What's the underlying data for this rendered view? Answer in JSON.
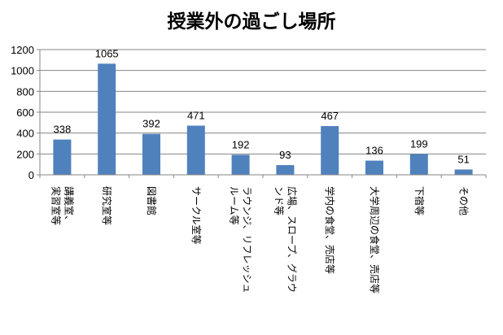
{
  "chart_data": {
    "type": "bar",
    "title": "授業外の過ごし場所",
    "xlabel": "",
    "ylabel": "",
    "ylim": [
      0,
      1200
    ],
    "yticks": [
      0,
      200,
      400,
      600,
      800,
      1000,
      1200
    ],
    "grid": true,
    "legend": "none",
    "bar_color": "#4F81BD",
    "categories": [
      [
        "講義室、",
        "実習室等"
      ],
      [
        "研究室等"
      ],
      [
        "図書館"
      ],
      [
        "サークル室等"
      ],
      [
        "ラウンジ、リフレッシュ",
        "ルーム等"
      ],
      [
        "広場、スロープ、グラウ",
        "ンド等"
      ],
      [
        "学内の食堂、売店等"
      ],
      [
        "大学周辺の食堂、売店等"
      ],
      [
        "下宿等"
      ],
      [
        "その他"
      ]
    ],
    "values": [
      338,
      1065,
      392,
      471,
      192,
      93,
      467,
      136,
      199,
      51
    ]
  }
}
